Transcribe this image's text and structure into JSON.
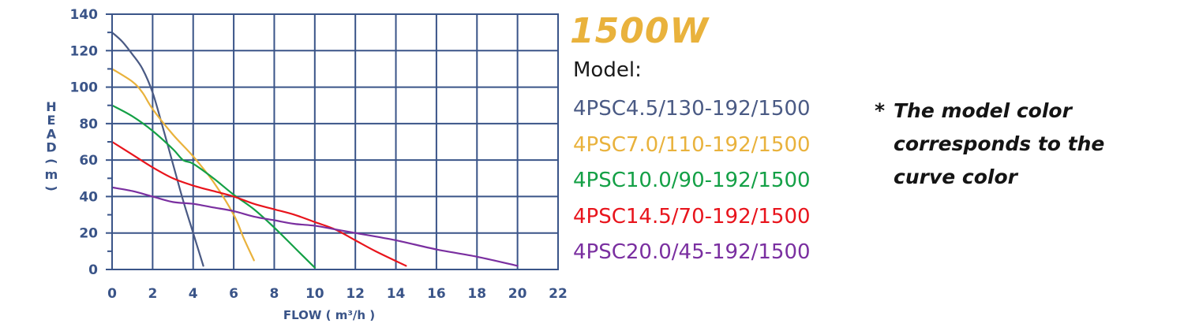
{
  "header": {
    "title": "1500W"
  },
  "legend": {
    "title": "Model:",
    "items": [
      {
        "label": "4PSC4.5/130-192/1500",
        "color": "#4a5a84"
      },
      {
        "label": "4PSC7.0/110-192/1500",
        "color": "#e9b23c"
      },
      {
        "label": "4PSC10.0/90-192/1500",
        "color": "#14a046"
      },
      {
        "label": "4PSC14.5/70-192/1500",
        "color": "#e8141c"
      },
      {
        "label": "4PSC20.0/45-192/1500",
        "color": "#7a2fa0"
      }
    ]
  },
  "note": {
    "star": "*",
    "text": "The model color corresponds to the curve color"
  },
  "chart_data": {
    "type": "line",
    "xlabel": "FLOW ( m³/h )",
    "ylabel": "HEAD ( m )",
    "xlim": [
      0,
      22
    ],
    "ylim": [
      0,
      140
    ],
    "xticks": [
      0,
      2,
      4,
      6,
      8,
      10,
      12,
      14,
      16,
      18,
      20,
      22
    ],
    "yticks": [
      0,
      20,
      40,
      60,
      80,
      100,
      120,
      140
    ],
    "grid": true,
    "grid_color": "#3a5488",
    "series": [
      {
        "name": "4PSC4.5/130-192/1500",
        "color": "#4a5a84",
        "x": [
          0,
          0.5,
          1.0,
          1.5,
          2.0,
          2.5,
          3.0,
          3.5,
          4.0,
          4.5
        ],
        "y": [
          130,
          125,
          118,
          110,
          97,
          78,
          58,
          38,
          20,
          2
        ]
      },
      {
        "name": "4PSC7.0/110-192/1500",
        "color": "#e9b23c",
        "x": [
          0,
          1.0,
          1.5,
          2.0,
          3.0,
          4.0,
          5.0,
          6.0,
          6.5,
          7.0
        ],
        "y": [
          110,
          103,
          97,
          88,
          74,
          62,
          48,
          30,
          17,
          5
        ]
      },
      {
        "name": "4PSC10.0/90-192/1500",
        "color": "#14a046",
        "x": [
          0,
          1.0,
          2.0,
          3.0,
          3.5,
          4.0,
          5.0,
          6.0,
          7.0,
          8.0,
          9.0,
          10.0
        ],
        "y": [
          90,
          84,
          76,
          66,
          60,
          58,
          50,
          41,
          33,
          23,
          12,
          1
        ]
      },
      {
        "name": "4PSC14.5/70-192/1500",
        "color": "#e8141c",
        "x": [
          0,
          1.0,
          2.0,
          3.0,
          4.0,
          5.0,
          6.0,
          7.0,
          8.0,
          9.0,
          10.0,
          11.0,
          12.0,
          13.0,
          14.5
        ],
        "y": [
          70,
          63,
          56,
          50,
          46,
          43,
          40,
          36,
          33,
          30,
          26,
          22,
          16,
          10,
          2
        ]
      },
      {
        "name": "4PSC20.0/45-192/1500",
        "color": "#7a2fa0",
        "x": [
          0,
          1.0,
          2.0,
          3.0,
          4.0,
          5.0,
          6.0,
          7.0,
          8.0,
          9.0,
          10.0,
          11.0,
          12.0,
          14.0,
          16.0,
          18.0,
          20.0
        ],
        "y": [
          45,
          43,
          40,
          37,
          36,
          34,
          32,
          29,
          27,
          25,
          24,
          22,
          20,
          16,
          11,
          7,
          2
        ]
      }
    ]
  }
}
